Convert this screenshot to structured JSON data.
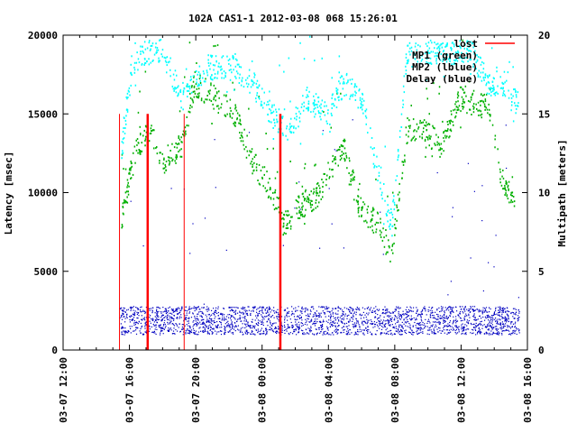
{
  "chart_data": {
    "type": "scatter",
    "title": "102A CAS1-1 2012-03-08 068 15:26:01",
    "ylabel": "Latency [msec]",
    "y2label": "Multipath [meters]",
    "xlabel": "",
    "x_unit": "hours since 03-07 12:00",
    "xlim": [
      0,
      28
    ],
    "ylim": [
      0,
      20000
    ],
    "y2lim": [
      0,
      20
    ],
    "yticks": [
      "0",
      "5000",
      "10000",
      "15000",
      "20000"
    ],
    "y2ticks": [
      "0",
      "5",
      "10",
      "15",
      "20"
    ],
    "xticks": [
      "03-07 12:00",
      "03-07 16:00",
      "03-07 20:00",
      "03-08 00:00",
      "03-08 04:00",
      "03-08 08:00",
      "03-08 12:00",
      "03-08 16:00"
    ],
    "legend_position": "top-right",
    "series": [
      {
        "name": "lost",
        "kind": "impulse",
        "color": "#ff0000",
        "x": [
          3.4,
          5.1,
          7.3,
          13.1
        ],
        "y": [
          15000,
          15000,
          15000,
          15000
        ],
        "widths": [
          "thin",
          "thick",
          "thin",
          "thick"
        ]
      },
      {
        "name": "MP1 (green)",
        "axis": "y2",
        "color": "#00b000",
        "x": [
          3.5,
          4.3,
          5.2,
          6.0,
          7.1,
          7.9,
          9.2,
          10.3,
          11.4,
          12.2,
          13.3,
          14.1,
          15.2,
          16.9,
          17.9,
          19.0,
          19.8,
          20.7,
          21.7,
          22.8,
          23.9,
          25.6,
          26.4,
          27.2
        ],
        "y": [
          8.5,
          12.5,
          14,
          12,
          13,
          17,
          16,
          15,
          12,
          10.8,
          8,
          9,
          9.7,
          13,
          9,
          8,
          6,
          14,
          14,
          13,
          16,
          15.5,
          11,
          9.5
        ]
      },
      {
        "name": "MP2 (lblue)",
        "axis": "y2",
        "color": "#00ffff",
        "x": [
          3.5,
          4.1,
          4.9,
          6.0,
          7.1,
          8.7,
          10.3,
          11.4,
          12.5,
          13.6,
          14.7,
          15.8,
          16.9,
          18.0,
          19.0,
          19.8,
          20.7,
          22.3,
          23.4,
          24.5,
          25.6,
          26.6,
          27.5
        ],
        "y": [
          13,
          18,
          19,
          19,
          16,
          18,
          18,
          17,
          15,
          14,
          16,
          15,
          17,
          16,
          11,
          8,
          19,
          19,
          19,
          19,
          17,
          17,
          15.5
        ]
      },
      {
        "name": "Delay (blue)",
        "axis": "y",
        "color": "#0000c0",
        "x_range": [
          3.4,
          27.5
        ],
        "typical_range": [
          1000,
          2800
        ]
      }
    ]
  }
}
